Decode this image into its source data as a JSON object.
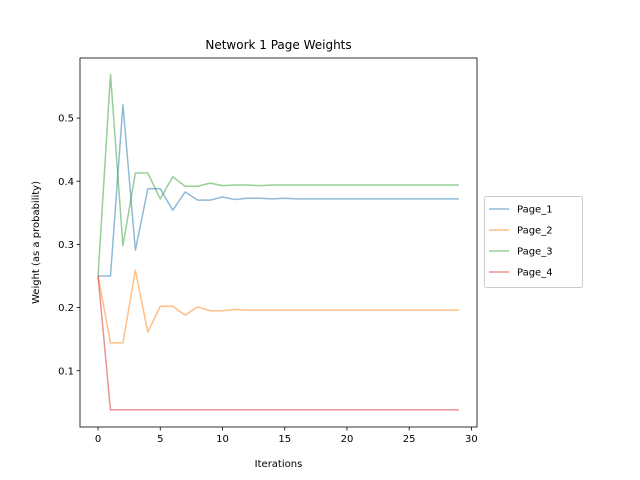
{
  "chart_data": {
    "type": "line",
    "title": "Network 1 Page Weights",
    "xlabel": "Iterations",
    "ylabel": "Weight (as a probability)",
    "xlim": [
      -1.45,
      30.45
    ],
    "ylim": [
      0.0109,
      0.5951
    ],
    "xticks": [
      0,
      5,
      10,
      15,
      20,
      25,
      30
    ],
    "yticks": [
      0.1,
      0.2,
      0.3,
      0.4,
      0.5
    ],
    "grid": false,
    "legend_position": "outside-right",
    "x": [
      0,
      1,
      2,
      3,
      4,
      5,
      6,
      7,
      8,
      9,
      10,
      11,
      12,
      13,
      14,
      15,
      16,
      17,
      18,
      19,
      20,
      21,
      22,
      23,
      24,
      25,
      26,
      27,
      28,
      29
    ],
    "series": [
      {
        "name": "Page_1",
        "color": "#1f77b4",
        "values": [
          0.25,
          0.25,
          0.521,
          0.291,
          0.388,
          0.388,
          0.354,
          0.383,
          0.37,
          0.37,
          0.375,
          0.371,
          0.373,
          0.373,
          0.372,
          0.373,
          0.372,
          0.372,
          0.372,
          0.372,
          0.372,
          0.372,
          0.372,
          0.372,
          0.372,
          0.372,
          0.372,
          0.372,
          0.372,
          0.372
        ]
      },
      {
        "name": "Page_2",
        "color": "#ff7f0e",
        "values": [
          0.25,
          0.144,
          0.144,
          0.259,
          0.161,
          0.202,
          0.202,
          0.188,
          0.201,
          0.195,
          0.195,
          0.197,
          0.196,
          0.196,
          0.196,
          0.196,
          0.196,
          0.196,
          0.196,
          0.196,
          0.196,
          0.196,
          0.196,
          0.196,
          0.196,
          0.196,
          0.196,
          0.196,
          0.196,
          0.196
        ]
      },
      {
        "name": "Page_3",
        "color": "#2ca02c",
        "values": [
          0.25,
          0.569,
          0.298,
          0.413,
          0.413,
          0.372,
          0.407,
          0.392,
          0.392,
          0.397,
          0.393,
          0.394,
          0.394,
          0.393,
          0.394,
          0.394,
          0.394,
          0.394,
          0.394,
          0.394,
          0.394,
          0.394,
          0.394,
          0.394,
          0.394,
          0.394,
          0.394,
          0.394,
          0.394,
          0.394
        ]
      },
      {
        "name": "Page_4",
        "color": "#d62728",
        "values": [
          0.25,
          0.038,
          0.038,
          0.038,
          0.038,
          0.038,
          0.038,
          0.038,
          0.038,
          0.038,
          0.038,
          0.038,
          0.038,
          0.038,
          0.038,
          0.038,
          0.038,
          0.038,
          0.038,
          0.038,
          0.038,
          0.038,
          0.038,
          0.038,
          0.038,
          0.038,
          0.038,
          0.038,
          0.038,
          0.038
        ]
      }
    ]
  }
}
